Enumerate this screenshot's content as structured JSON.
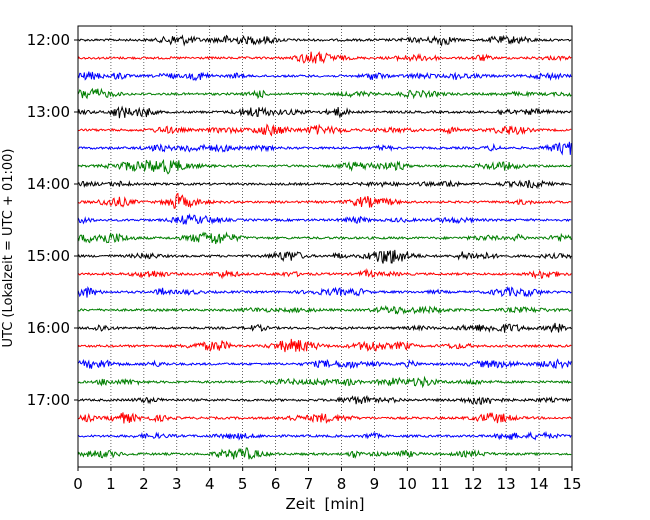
{
  "chart_data": {
    "type": "line",
    "title": "",
    "xlabel": "Zeit  [min]",
    "ylabel": "UTC (Lokalzeit = UTC + 01:00)",
    "xlim": [
      0,
      15
    ],
    "x_ticks": [
      "0",
      "1",
      "2",
      "3",
      "4",
      "5",
      "6",
      "7",
      "8",
      "9",
      "10",
      "11",
      "12",
      "13",
      "14",
      "15"
    ],
    "y_ticks": [
      "12:00",
      "13:00",
      "14:00",
      "15:00",
      "16:00",
      "17:00"
    ],
    "grid": "vertical dotted",
    "legend": "none",
    "colors": [
      "#000000",
      "#ff0000",
      "#0000ff",
      "#007f00"
    ],
    "series": [
      {
        "start": "12:00"
      },
      {
        "start": "12:15"
      },
      {
        "start": "12:30"
      },
      {
        "start": "12:45"
      },
      {
        "start": "13:00"
      },
      {
        "start": "13:15"
      },
      {
        "start": "13:30"
      },
      {
        "start": "13:45"
      },
      {
        "start": "14:00"
      },
      {
        "start": "14:15"
      },
      {
        "start": "14:30"
      },
      {
        "start": "14:45"
      },
      {
        "start": "15:00"
      },
      {
        "start": "15:15"
      },
      {
        "start": "15:30"
      },
      {
        "start": "15:45"
      },
      {
        "start": "16:00"
      },
      {
        "start": "16:15"
      },
      {
        "start": "16:30"
      },
      {
        "start": "16:45"
      },
      {
        "start": "17:00"
      },
      {
        "start": "17:15"
      },
      {
        "start": "17:30"
      },
      {
        "start": "17:45"
      }
    ]
  }
}
